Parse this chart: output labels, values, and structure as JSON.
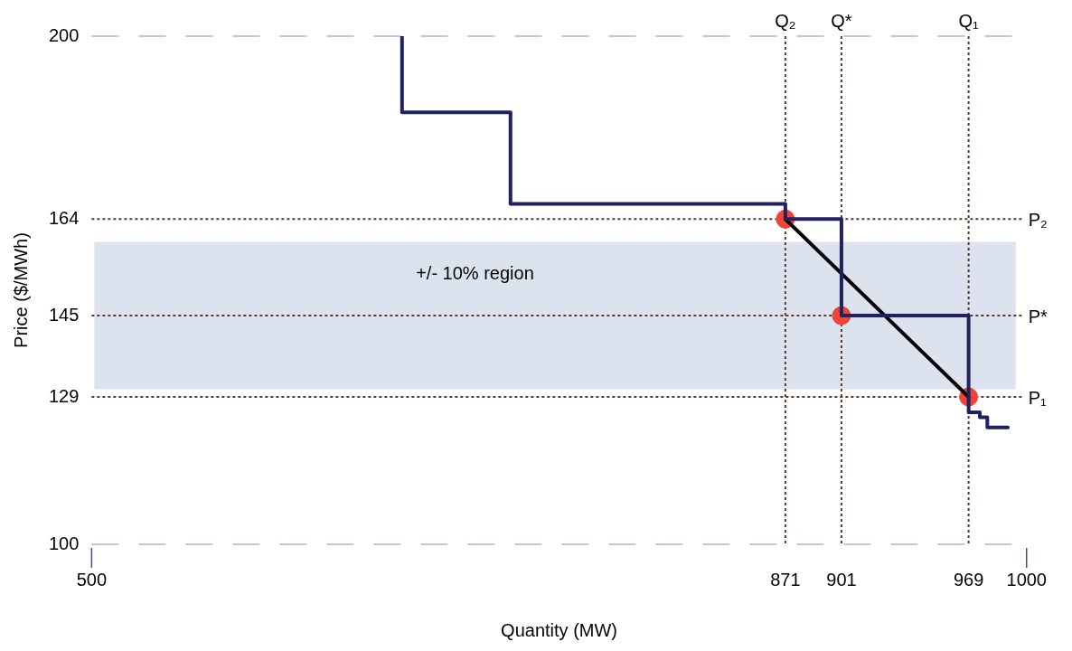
{
  "chart_data": {
    "type": "step",
    "xlabel": "Quantity (MW)",
    "ylabel": "Price ($/MWh)",
    "xlim": [
      500,
      1000
    ],
    "xticks": [
      500,
      871,
      901,
      969,
      1000
    ],
    "ylim": [
      100,
      200
    ],
    "yticks": [
      100,
      129,
      145,
      164,
      200
    ],
    "grid": false,
    "legend": false,
    "series": [
      {
        "color": "#1f2160",
        "x": [
          666,
          724,
          871,
          901,
          969,
          975,
          979,
          990
        ],
        "values": [
          200,
          185,
          167,
          164,
          145,
          126,
          125,
          123
        ]
      },
      {
        "type": "line",
        "color": "#000000",
        "x": [
          871,
          969
        ],
        "values": [
          164,
          129
        ]
      },
      {
        "type": "scatter",
        "color": "#f04438",
        "x": [
          871,
          901,
          969
        ],
        "values": [
          164,
          145,
          129
        ]
      }
    ],
    "bands": [
      {
        "axis": "y",
        "from": 130.5,
        "to": 159.5,
        "label": "+/- 10% region",
        "color": "#dce3ef"
      }
    ],
    "ref_lines": [
      {
        "axis": "y",
        "value": 200,
        "color": "#a9b6d8",
        "line_style": "dashed"
      },
      {
        "axis": "y",
        "value": 100,
        "color": "#a9b6d8",
        "line_style": "dashed"
      },
      {
        "axis": "y",
        "value": 164,
        "label": "P₂",
        "color": "#5a3a28",
        "line_style": "dotted"
      },
      {
        "axis": "y",
        "value": 145,
        "label": "P*",
        "color": "#5a3a28",
        "line_style": "dotted"
      },
      {
        "axis": "y",
        "value": 129,
        "label": "P₁",
        "color": "#5a3a28",
        "line_style": "dotted"
      },
      {
        "axis": "x",
        "value": 871,
        "label": "Q₂",
        "color": "#5a3a28",
        "line_style": "dotted"
      },
      {
        "axis": "x",
        "value": 901,
        "label": "Q*",
        "color": "#5a3a28",
        "line_style": "dotted"
      },
      {
        "axis": "x",
        "value": 969,
        "label": "Q₁",
        "color": "#5a3a28",
        "line_style": "dotted"
      }
    ]
  }
}
